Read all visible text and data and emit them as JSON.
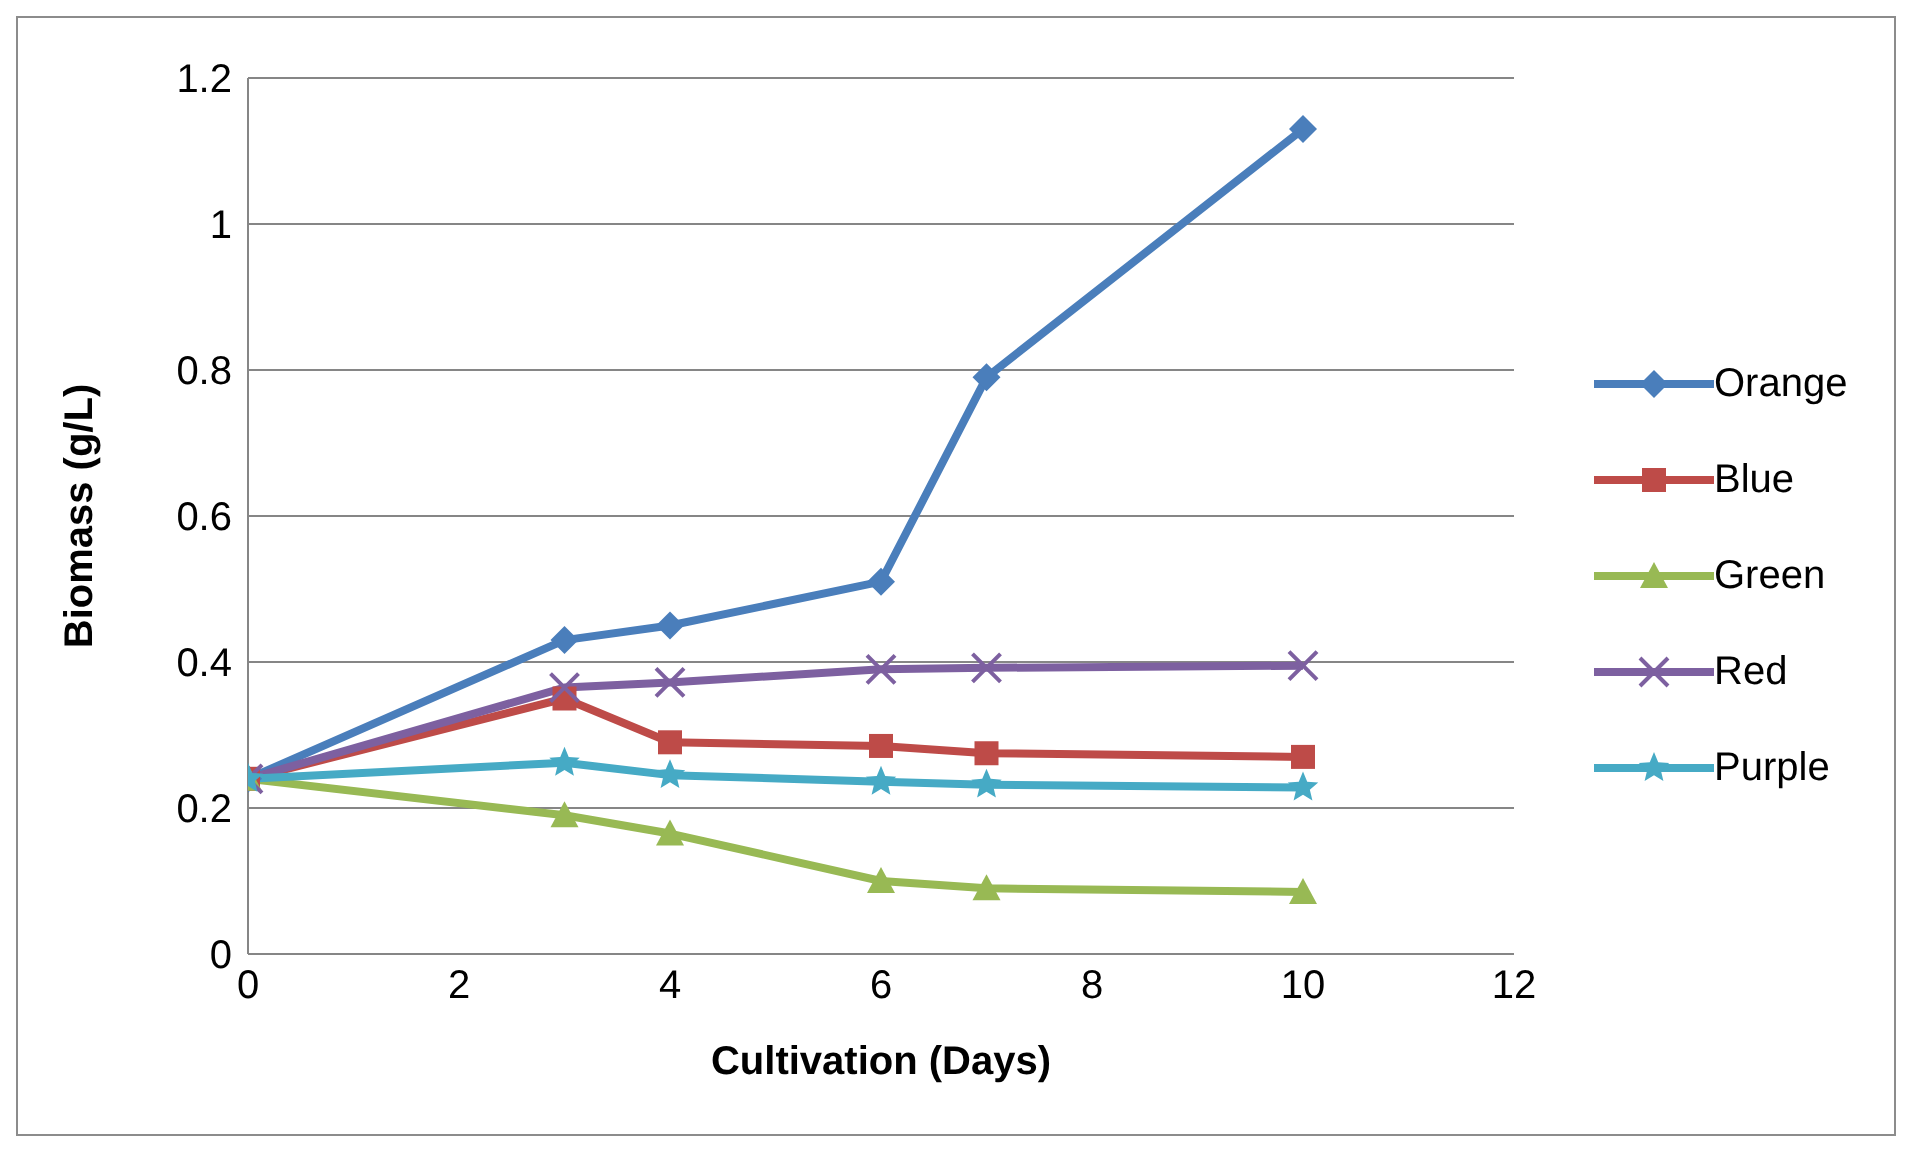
{
  "chart_data": {
    "type": "line",
    "xlabel": "Cultivation (Days)",
    "ylabel": "Biomass (g/L)",
    "x": [
      0,
      3,
      4,
      6,
      7,
      10
    ],
    "xlim": [
      0,
      12
    ],
    "xticks": [
      0,
      2,
      4,
      6,
      8,
      10,
      12
    ],
    "ylim": [
      0,
      1.2
    ],
    "yticks": [
      0,
      0.2,
      0.4,
      0.6,
      0.8,
      1,
      1.2
    ],
    "grid": "y",
    "legend": "right",
    "line_style": "solid",
    "series": [
      {
        "name": "Orange",
        "color": "#4a7ebb",
        "marker": "diamond",
        "values": [
          0.24,
          0.43,
          0.45,
          0.51,
          0.79,
          1.13
        ]
      },
      {
        "name": "Blue",
        "color": "#be4b48",
        "marker": "square",
        "values": [
          0.24,
          0.35,
          0.29,
          0.285,
          0.275,
          0.27
        ]
      },
      {
        "name": "Green",
        "color": "#98b954",
        "marker": "triangle",
        "values": [
          0.24,
          0.19,
          0.165,
          0.1,
          0.09,
          0.085
        ]
      },
      {
        "name": "Red",
        "color": "#7d60a0",
        "marker": "cross",
        "values": [
          0.24,
          0.365,
          0.372,
          0.39,
          0.392,
          0.395
        ]
      },
      {
        "name": "Purple",
        "color": "#46aac5",
        "marker": "star",
        "values": [
          0.24,
          0.262,
          0.245,
          0.236,
          0.232,
          0.228
        ]
      }
    ]
  }
}
